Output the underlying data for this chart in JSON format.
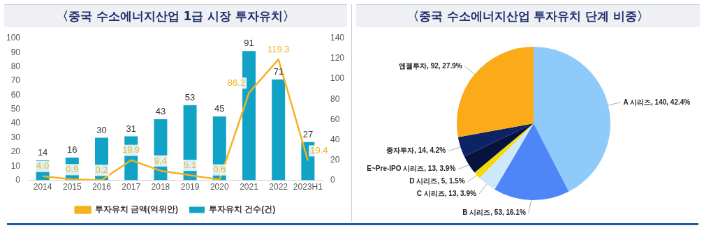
{
  "chart_data": [
    {
      "type": "bar",
      "title": "〈중국 수소에너지산업 1급 시장 투자유치〉",
      "categories": [
        "2014",
        "2015",
        "2016",
        "2017",
        "2018",
        "2019",
        "2020",
        "2021",
        "2022",
        "2023H1"
      ],
      "series": [
        {
          "name": "투자유치 건수(건)",
          "type": "bar",
          "color": "#11a3c6",
          "values": [
            14,
            16,
            30,
            31,
            43,
            53,
            45,
            91,
            71,
            27
          ]
        },
        {
          "name": "투자유치 금액(억위안)",
          "type": "line",
          "axis": "y2",
          "color": "#f5b21f",
          "values": [
            4.0,
            0.9,
            0.2,
            19.9,
            9.4,
            5.1,
            0.6,
            86.2,
            119.3,
            19.4
          ],
          "value_labels": [
            "4.0",
            "0.9",
            "0.2",
            "19.9",
            "9.4",
            "5.1",
            "0.6",
            "86.2",
            "119.3",
            "19.4"
          ]
        }
      ],
      "ylim": [
        0,
        100
      ],
      "yticks": [
        0,
        10,
        20,
        30,
        40,
        50,
        60,
        70,
        80,
        90,
        100
      ],
      "y2lim": [
        0,
        140
      ],
      "y2ticks": [
        0,
        20,
        40,
        60,
        80,
        100,
        120,
        140
      ],
      "data_labels": true,
      "legend": "bottom",
      "grid": false,
      "marker": "none"
    },
    {
      "type": "pie",
      "title": "〈중국 수소에너지산업 투자유치 단계 비중〉",
      "categories": [
        "A 시리즈",
        "B 시리즈",
        "C 시리즈",
        "D 시리즈",
        "E~Pre-IPO 시리즈",
        "종자투자",
        "엔젤투자"
      ],
      "values": [
        140,
        53,
        13,
        5,
        13,
        14,
        92
      ],
      "value_labels": [
        "140, 42.4%",
        "53, 16.1%",
        "13, 3.9%",
        "5, 1.5%",
        "13, 3.9%",
        "14, 4.2%",
        "92, 27.9%"
      ],
      "colors": [
        "#8ecbfa",
        "#4f86f7",
        "#cde9f9",
        "#f5d90a",
        "#06143d",
        "#0c2466",
        "#fbaa1a"
      ],
      "legend": false
    }
  ]
}
